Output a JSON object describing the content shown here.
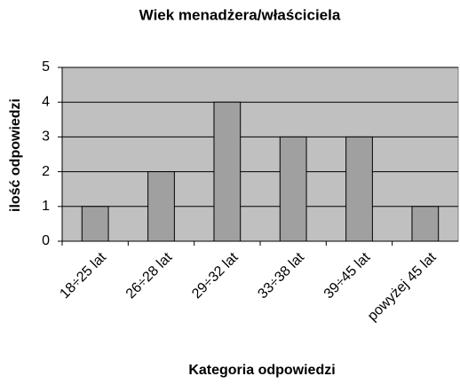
{
  "chart_data": {
    "type": "bar",
    "title": "Wiek menadżera/właściciela",
    "x_label": "Kategoria odpowiedzi",
    "y_label": "ilość odpowiedzi",
    "categories": [
      "18÷25 lat",
      "26÷28 lat",
      "29÷32 lat",
      "33÷38 lat",
      "39÷45 lat",
      "powyżej 45 lat"
    ],
    "values": [
      1,
      2,
      4,
      3,
      3,
      1
    ],
    "color": "#a0a0a0",
    "ylim": [
      0,
      5
    ],
    "yticks": [
      0,
      1,
      2,
      3,
      4,
      5
    ],
    "grid": true
  }
}
